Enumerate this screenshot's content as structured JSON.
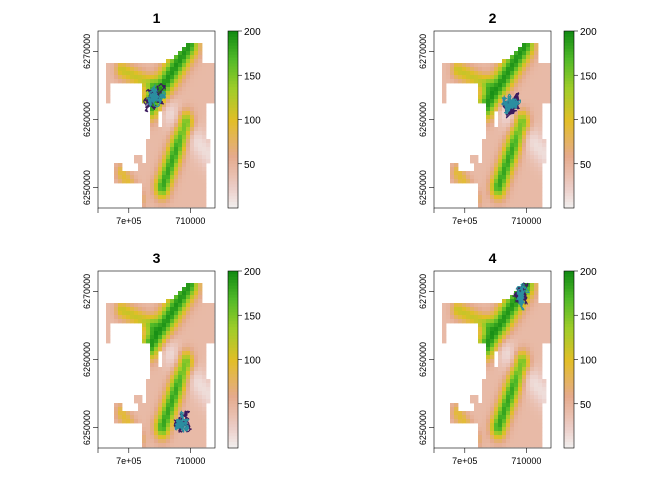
{
  "figure": {
    "panel_titles": [
      "1",
      "2",
      "3",
      "4"
    ]
  },
  "chart_data": [
    {
      "type": "heatmap",
      "title": "1",
      "x_ticks": [
        {
          "value": 700000,
          "label": "7e+05"
        },
        {
          "value": 710000,
          "label": "710000"
        }
      ],
      "y_ticks": [
        {
          "value": 6250000,
          "label": "6250000"
        },
        {
          "value": 6260000,
          "label": "6260000"
        },
        {
          "value": 6270000,
          "label": "6270000"
        }
      ],
      "xlim": [
        695000,
        714000
      ],
      "ylim": [
        6247000,
        6273000
      ],
      "legend": {
        "ticks": [
          50,
          100,
          150,
          200
        ],
        "range": [
          0,
          200
        ]
      },
      "track_region": "center"
    },
    {
      "type": "heatmap",
      "title": "2",
      "x_ticks": [
        {
          "value": 700000,
          "label": "7e+05"
        },
        {
          "value": 710000,
          "label": "710000"
        }
      ],
      "y_ticks": [
        {
          "value": 6250000,
          "label": "6250000"
        },
        {
          "value": 6260000,
          "label": "6260000"
        },
        {
          "value": 6270000,
          "label": "6270000"
        }
      ],
      "xlim": [
        695000,
        714000
      ],
      "ylim": [
        6247000,
        6273000
      ],
      "legend": {
        "ticks": [
          50,
          100,
          150,
          200
        ],
        "range": [
          0,
          200
        ]
      },
      "track_region": "center-east"
    },
    {
      "type": "heatmap",
      "title": "3",
      "x_ticks": [
        {
          "value": 700000,
          "label": "7e+05"
        },
        {
          "value": 710000,
          "label": "710000"
        }
      ],
      "y_ticks": [
        {
          "value": 6250000,
          "label": "6250000"
        },
        {
          "value": 6260000,
          "label": "6260000"
        },
        {
          "value": 6270000,
          "label": "6270000"
        }
      ],
      "xlim": [
        695000,
        714000
      ],
      "ylim": [
        6247000,
        6273000
      ],
      "legend": {
        "ticks": [
          50,
          100,
          150,
          200
        ],
        "range": [
          0,
          200
        ]
      },
      "track_region": "south-east"
    },
    {
      "type": "heatmap",
      "title": "4",
      "x_ticks": [
        {
          "value": 700000,
          "label": "7e+05"
        },
        {
          "value": 710000,
          "label": "710000"
        }
      ],
      "y_ticks": [
        {
          "value": 6250000,
          "label": "6250000"
        },
        {
          "value": 6260000,
          "label": "6260000"
        },
        {
          "value": 6270000,
          "label": "6270000"
        }
      ],
      "xlim": [
        695000,
        714000
      ],
      "ylim": [
        6247000,
        6273000
      ],
      "legend": {
        "ticks": [
          50,
          100,
          150,
          200
        ],
        "range": [
          0,
          200
        ]
      },
      "track_region": "north-east"
    }
  ],
  "colors": {
    "terrain_low": "#f2d7d5",
    "terrain_mid": "#e8a98c",
    "terrain_yellow": "#e3c11b",
    "terrain_green": "#7cc02b",
    "terrain_high": "#1a9a1a",
    "track_purple": "#3a1a5e",
    "track_teal": "#2a8ea0",
    "axis": "#000000"
  }
}
